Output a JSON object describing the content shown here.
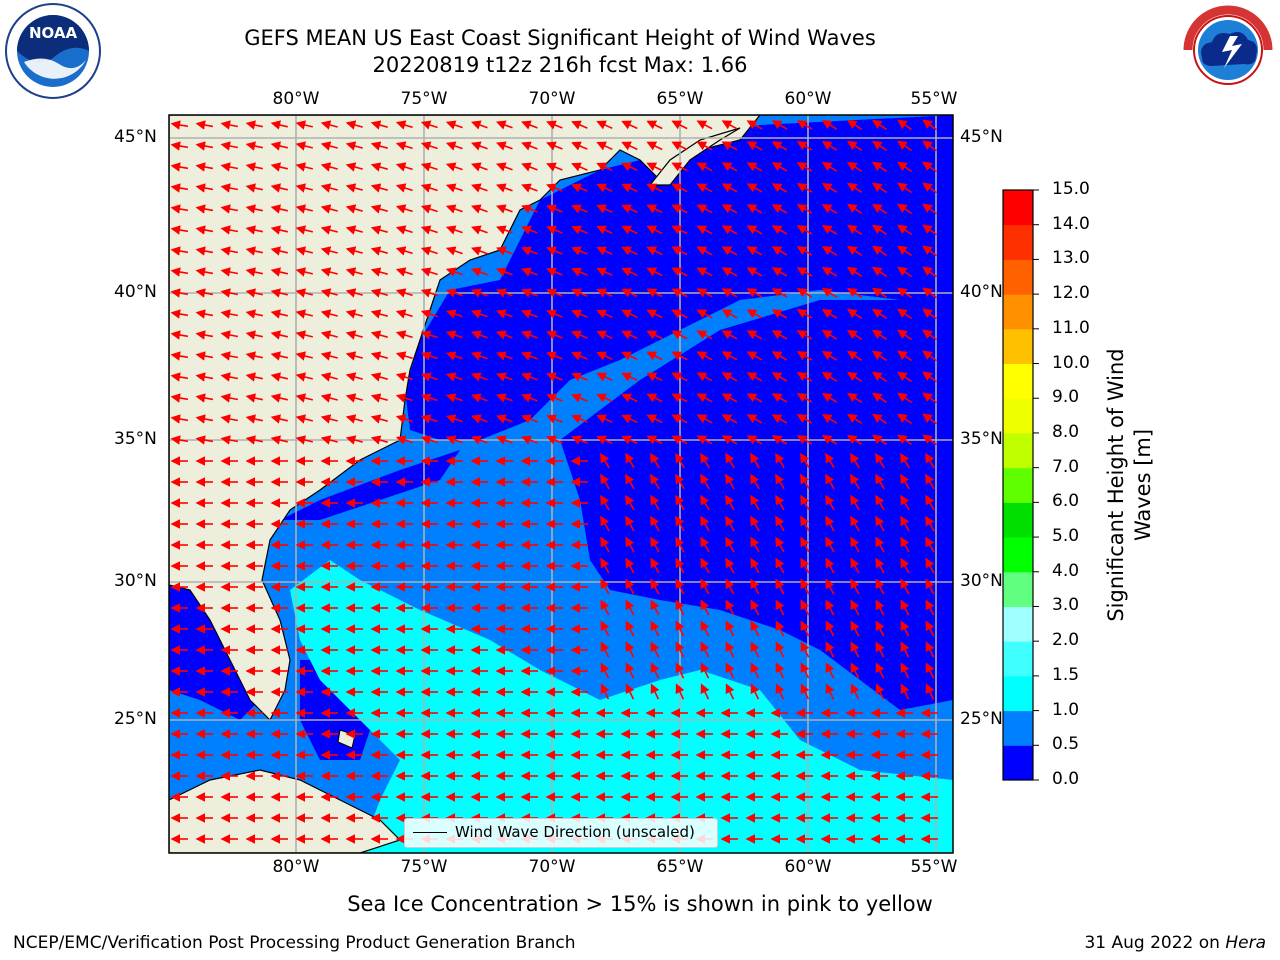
{
  "title": {
    "line1": "GEFS MEAN US East Coast Significant Height of Wind Waves",
    "line2": "20220819 t12z 216h fcst   Max: 1.66"
  },
  "logos": {
    "noaa_text": "NOAA",
    "noaa_ring": "NATIONAL OCEANIC AND ATMOSPHERIC ADMINISTRATION · U.S. DEPARTMENT OF COMMERCE",
    "nws_ring": "NATIONAL WEATHER SERVICE"
  },
  "map": {
    "lon_labels": [
      "80°W",
      "75°W",
      "70°W",
      "65°W",
      "60°W",
      "55°W"
    ],
    "lat_labels": [
      "45°N",
      "40°N",
      "35°N",
      "30°N",
      "25°N"
    ],
    "colors": {
      "land": "#eeeedc",
      "ocean_deep": "#0000ff",
      "band_0_5_1_0": "#0080ff",
      "band_1_0_1_5": "#00ffff",
      "arrows": "#ff0000",
      "grid": "#b0b0b0"
    },
    "arrow_icon": "red-direction-arrow"
  },
  "legend": {
    "label": "Wind Wave Direction (unscaled)"
  },
  "colorbar": {
    "title_line1": "Significant Height of Wind",
    "title_line2": "Waves [m]",
    "ticks": [
      "0.0",
      "0.5",
      "1.0",
      "1.5",
      "2.0",
      "3.0",
      "4.0",
      "5.0",
      "6.0",
      "7.0",
      "8.0",
      "9.0",
      "10.0",
      "11.0",
      "12.0",
      "13.0",
      "14.0",
      "15.0"
    ],
    "colors": [
      "#0000ff",
      "#0080ff",
      "#00ffff",
      "#40ffff",
      "#a0ffff",
      "#60ff80",
      "#00ff00",
      "#00e000",
      "#60ff00",
      "#c0ff00",
      "#f0ff00",
      "#ffff00",
      "#ffc000",
      "#ff9000",
      "#ff6000",
      "#ff3000",
      "#ff0000"
    ]
  },
  "subtitle": "Sea Ice Concentration > 15% is shown in pink to yellow",
  "footer": {
    "left": "NCEP/EMC/Verification Post Processing Product Generation Branch",
    "date": "31 Aug 2022 on",
    "host": "Hera"
  }
}
